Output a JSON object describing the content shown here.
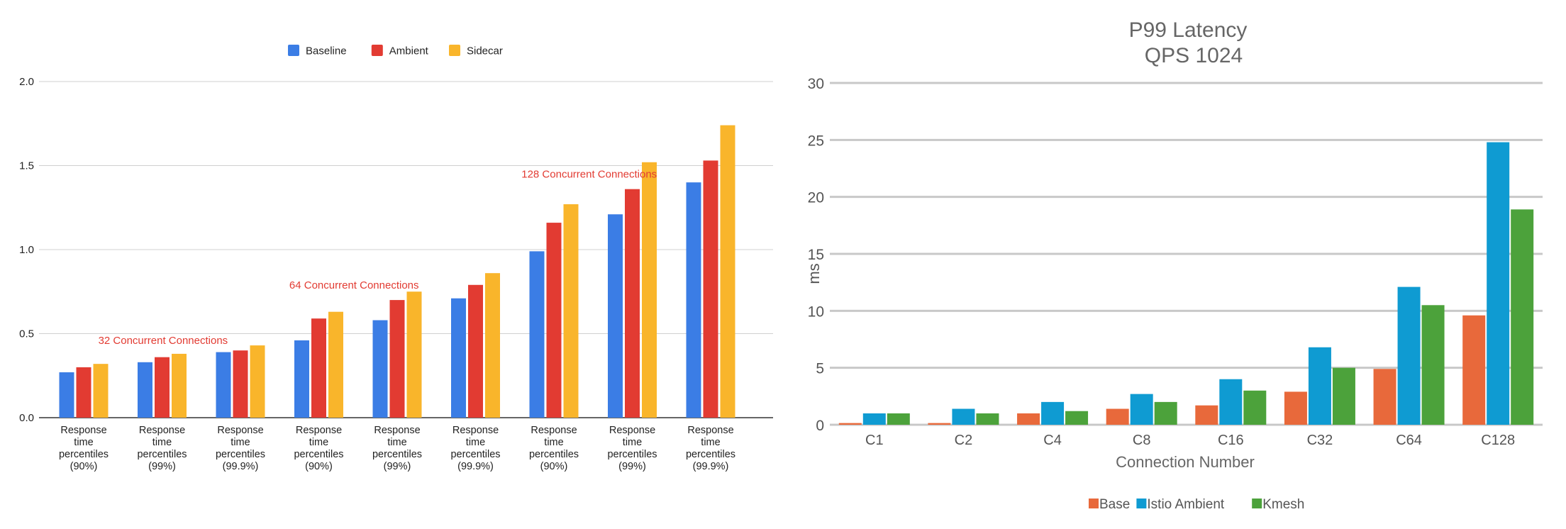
{
  "chart_data": [
    {
      "type": "bar",
      "title": "",
      "xlabel": "",
      "ylabel": "",
      "ylim": [
        0,
        2.0
      ],
      "yticks": [
        "0.0",
        "0.5",
        "1.0",
        "1.5",
        "2.0"
      ],
      "grid": true,
      "legend_position": "top",
      "categories": [
        "Response time percentiles (90%)",
        "Response time percentiles (99%)",
        "Response time percentiles (99.9%)",
        "Response time percentiles (90%)",
        "Response time percentiles (99%)",
        "Response time percentiles (99.9%)",
        "Response time percentiles (90%)",
        "Response time percentiles (99%)",
        "Response time percentiles (99.9%)"
      ],
      "series": [
        {
          "name": "Baseline",
          "color": "#3b7de5",
          "values": [
            0.27,
            0.33,
            0.39,
            0.46,
            0.58,
            0.71,
            0.99,
            1.21,
            1.4
          ]
        },
        {
          "name": "Ambient",
          "color": "#e23b32",
          "values": [
            0.3,
            0.36,
            0.4,
            0.59,
            0.7,
            0.79,
            1.16,
            1.36,
            1.53
          ]
        },
        {
          "name": "Sidecar",
          "color": "#f9b52b",
          "values": [
            0.32,
            0.38,
            0.43,
            0.63,
            0.75,
            0.86,
            1.27,
            1.52,
            1.74
          ]
        }
      ],
      "annotations": [
        {
          "text": "32 Concurrent Connections",
          "category_index": 0,
          "offset": 0.75,
          "value": 0.46,
          "color": "#e23b32"
        },
        {
          "text": "64 Concurrent Connections",
          "category_index": 3,
          "offset": 0.45,
          "value": 0.79,
          "color": "#e23b32"
        },
        {
          "text": "128 Concurrent Connections",
          "category_index": 6,
          "offset": 0.45,
          "value": 1.45,
          "color": "#e23b32"
        }
      ]
    },
    {
      "type": "bar",
      "title": "P99 Latency",
      "subtitle": "QPS 1024",
      "xlabel": "Connection Number",
      "ylabel": "ms",
      "ylim": [
        0,
        30
      ],
      "yticks": [
        "0",
        "5",
        "10",
        "15",
        "20",
        "25",
        "30"
      ],
      "grid": true,
      "legend_position": "bottom",
      "categories": [
        "C1",
        "C2",
        "C4",
        "C8",
        "C16",
        "C32",
        "C64",
        "C128"
      ],
      "series": [
        {
          "name": "Base",
          "color": "#e8693b",
          "values": [
            0.15,
            0.15,
            1.0,
            1.4,
            1.7,
            2.9,
            4.9,
            9.6
          ]
        },
        {
          "name": "Istio Ambient",
          "color": "#0f9bd2",
          "values": [
            1.0,
            1.4,
            2.0,
            2.7,
            4.0,
            6.8,
            12.1,
            24.8
          ]
        },
        {
          "name": "Kmesh",
          "color": "#4ca23b",
          "values": [
            1.0,
            1.0,
            1.2,
            2.0,
            3.0,
            5.0,
            10.5,
            18.9
          ]
        }
      ]
    }
  ]
}
